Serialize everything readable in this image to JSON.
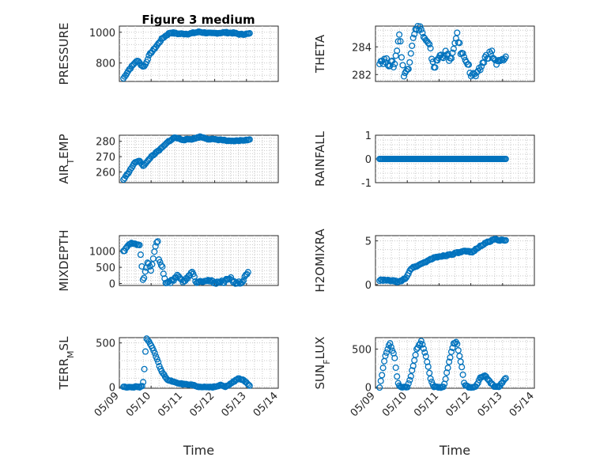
{
  "figure": {
    "title": "Figure 3 medium"
  },
  "chart_data": [
    {
      "id": "pressure",
      "type": "scatter",
      "title": "Figure 3 medium",
      "ylabel": "PRESSURE",
      "xlabel": "",
      "ylim": [
        680,
        1040
      ],
      "yticks": [
        800,
        1000
      ],
      "ytick_labels": [
        "800",
        "1000"
      ],
      "xlim": [
        "05/09",
        "05/14"
      ],
      "xtick_labels": [],
      "anchors": [
        [
          9.13,
          700
        ],
        [
          9.3,
          755
        ],
        [
          9.5,
          805
        ],
        [
          9.6,
          815
        ],
        [
          9.7,
          780
        ],
        [
          9.8,
          780
        ],
        [
          9.95,
          855
        ],
        [
          10.15,
          905
        ],
        [
          10.35,
          960
        ],
        [
          10.6,
          998
        ],
        [
          10.85,
          990
        ],
        [
          11.2,
          990
        ],
        [
          11.5,
          1002
        ],
        [
          11.9,
          992
        ],
        [
          12.3,
          998
        ],
        [
          12.6,
          995
        ],
        [
          12.8,
          986
        ],
        [
          13.1,
          990
        ]
      ],
      "noise": 4,
      "count": 110
    },
    {
      "id": "theta",
      "type": "scatter",
      "title": "",
      "ylabel": "THETA",
      "xlabel": "",
      "ylim": [
        281.5,
        285.5
      ],
      "yticks": [
        282,
        284
      ],
      "ytick_labels": [
        "282",
        "284"
      ],
      "xlim": [
        "05/09",
        "05/14"
      ],
      "xtick_labels": [],
      "anchors": [
        [
          9.13,
          283.0
        ],
        [
          9.3,
          283.0
        ],
        [
          9.45,
          282.8
        ],
        [
          9.6,
          282.7
        ],
        [
          9.75,
          285.0
        ],
        [
          9.9,
          281.8
        ],
        [
          10.05,
          282.7
        ],
        [
          10.2,
          285.0
        ],
        [
          10.4,
          285.5
        ],
        [
          10.55,
          284.5
        ],
        [
          10.7,
          284.0
        ],
        [
          10.85,
          282.5
        ],
        [
          11.0,
          283.3
        ],
        [
          11.2,
          283.5
        ],
        [
          11.4,
          283.0
        ],
        [
          11.55,
          285.0
        ],
        [
          11.7,
          283.5
        ],
        [
          11.85,
          283.2
        ],
        [
          12.0,
          282.0
        ],
        [
          12.2,
          281.9
        ],
        [
          12.45,
          283.2
        ],
        [
          12.65,
          283.6
        ],
        [
          12.8,
          282.8
        ],
        [
          13.1,
          283.1
        ]
      ],
      "noise": 0.25,
      "count": 110
    },
    {
      "id": "air_temp",
      "type": "scatter",
      "title": "",
      "ylabel": "AIR_TEMP",
      "ylabel_main": "AIR",
      "ylabel_sub": "T",
      "ylabel_rest": "EMP",
      "xlabel": "",
      "ylim": [
        253,
        284
      ],
      "yticks": [
        260,
        270,
        280
      ],
      "ytick_labels": [
        "260",
        "270",
        "280"
      ],
      "xlim": [
        "05/09",
        "05/14"
      ],
      "xtick_labels": [],
      "anchors": [
        [
          9.13,
          255
        ],
        [
          9.3,
          260
        ],
        [
          9.5,
          266.5
        ],
        [
          9.65,
          267
        ],
        [
          9.75,
          264
        ],
        [
          9.85,
          266
        ],
        [
          10.0,
          270
        ],
        [
          10.3,
          275
        ],
        [
          10.55,
          280
        ],
        [
          10.75,
          282.5
        ],
        [
          11.0,
          281
        ],
        [
          11.3,
          281.5
        ],
        [
          11.55,
          283
        ],
        [
          11.8,
          281.5
        ],
        [
          12.2,
          281
        ],
        [
          12.5,
          280
        ],
        [
          12.8,
          280.5
        ],
        [
          13.1,
          281
        ]
      ],
      "noise": 0.3,
      "count": 110
    },
    {
      "id": "rainfall",
      "type": "scatter",
      "title": "",
      "ylabel": "RAINFALL",
      "xlabel": "",
      "ylim": [
        -1,
        1
      ],
      "yticks": [
        -1,
        0,
        1
      ],
      "ytick_labels": [
        "-1",
        "0",
        "1"
      ],
      "xlim": [
        "05/09",
        "05/14"
      ],
      "xtick_labels": [],
      "anchors": [
        [
          9.13,
          0
        ],
        [
          13.1,
          0
        ]
      ],
      "noise": 0,
      "count": 110
    },
    {
      "id": "mixdepth",
      "type": "scatter",
      "title": "",
      "ylabel": "MIXDEPTH",
      "xlabel": "",
      "ylim": [
        -60,
        1480
      ],
      "yticks": [
        0,
        500,
        1000
      ],
      "ytick_labels": [
        "0",
        "500",
        "1000"
      ],
      "xlim": [
        "05/09",
        "05/14"
      ],
      "xtick_labels": [],
      "anchors": [
        [
          9.13,
          1000
        ],
        [
          9.25,
          1150
        ],
        [
          9.4,
          1250
        ],
        [
          9.55,
          1200
        ],
        [
          9.65,
          1150
        ],
        [
          9.75,
          0
        ],
        [
          9.8,
          300
        ],
        [
          9.9,
          700
        ],
        [
          10.0,
          400
        ],
        [
          10.1,
          1000
        ],
        [
          10.2,
          1400
        ],
        [
          10.25,
          700
        ],
        [
          10.35,
          500
        ],
        [
          10.45,
          30
        ],
        [
          10.6,
          50
        ],
        [
          10.75,
          150
        ],
        [
          10.85,
          280
        ],
        [
          10.95,
          100
        ],
        [
          11.05,
          50
        ],
        [
          11.15,
          200
        ],
        [
          11.3,
          380
        ],
        [
          11.4,
          50
        ],
        [
          11.55,
          80
        ],
        [
          11.75,
          100
        ],
        [
          12.0,
          30
        ],
        [
          12.3,
          60
        ],
        [
          12.5,
          180
        ],
        [
          12.6,
          40
        ],
        [
          12.85,
          10
        ],
        [
          12.95,
          200
        ],
        [
          13.05,
          320
        ]
      ],
      "noise": 40,
      "count": 110
    },
    {
      "id": "h2omixra",
      "type": "scatter",
      "title": "",
      "ylabel": "H2OMIXRA",
      "xlabel": "",
      "ylim": [
        -0.1,
        5.6
      ],
      "yticks": [
        0,
        5
      ],
      "ytick_labels": [
        "0",
        "5"
      ],
      "xlim": [
        "05/09",
        "05/14"
      ],
      "xtick_labels": [],
      "anchors": [
        [
          9.13,
          0.5
        ],
        [
          9.5,
          0.45
        ],
        [
          9.75,
          0.3
        ],
        [
          9.9,
          0.6
        ],
        [
          10.0,
          1.0
        ],
        [
          10.1,
          1.8
        ],
        [
          10.4,
          2.3
        ],
        [
          10.8,
          3.0
        ],
        [
          11.0,
          3.2
        ],
        [
          11.3,
          3.4
        ],
        [
          11.8,
          3.8
        ],
        [
          12.05,
          3.7
        ],
        [
          12.2,
          4.2
        ],
        [
          12.5,
          4.8
        ],
        [
          12.75,
          5.2
        ],
        [
          13.1,
          5.0
        ]
      ],
      "noise": 0.08,
      "count": 110
    },
    {
      "id": "terr_msl",
      "type": "scatter",
      "title": "",
      "ylabel": "TERR_MSL",
      "ylabel_main": "TERR",
      "ylabel_sub": "M",
      "ylabel_rest": "SL",
      "xlabel": "Time",
      "ylim": [
        -15,
        560
      ],
      "yticks": [
        0,
        500
      ],
      "ytick_labels": [
        "0",
        "500"
      ],
      "xlim": [
        "05/09",
        "05/14"
      ],
      "xtick_labels": [
        "05/09",
        "05/10",
        "05/11",
        "05/12",
        "05/13",
        "05/14"
      ],
      "anchors": [
        [
          9.13,
          0
        ],
        [
          9.7,
          0
        ],
        [
          9.75,
          50
        ],
        [
          9.8,
          270
        ],
        [
          9.85,
          560
        ],
        [
          9.95,
          500
        ],
        [
          10.1,
          400
        ],
        [
          10.3,
          200
        ],
        [
          10.5,
          80
        ],
        [
          10.8,
          50
        ],
        [
          11.0,
          30
        ],
        [
          11.3,
          20
        ],
        [
          11.5,
          0
        ],
        [
          12.0,
          0
        ],
        [
          12.2,
          20
        ],
        [
          12.35,
          0
        ],
        [
          12.6,
          60
        ],
        [
          12.75,
          100
        ],
        [
          12.9,
          80
        ],
        [
          13.05,
          30
        ],
        [
          13.1,
          10
        ]
      ],
      "noise": 6,
      "count": 110
    },
    {
      "id": "sun_flux",
      "type": "scatter",
      "title": "",
      "ylabel": "SUN_FLUX",
      "ylabel_main": "SUN",
      "ylabel_sub": "F",
      "ylabel_rest": "LUX",
      "xlabel": "Time",
      "ylim": [
        -15,
        650
      ],
      "yticks": [
        0,
        500
      ],
      "ytick_labels": [
        "0",
        "500"
      ],
      "xlim": [
        "05/09",
        "05/14"
      ],
      "xtick_labels": [
        "05/09",
        "05/10",
        "05/11",
        "05/12",
        "05/13",
        "05/14"
      ],
      "anchors": [
        [
          9.13,
          0
        ],
        [
          9.2,
          150
        ],
        [
          9.3,
          400
        ],
        [
          9.45,
          580
        ],
        [
          9.6,
          400
        ],
        [
          9.7,
          50
        ],
        [
          9.8,
          0
        ],
        [
          10.0,
          0
        ],
        [
          10.1,
          120
        ],
        [
          10.3,
          500
        ],
        [
          10.45,
          610
        ],
        [
          10.6,
          380
        ],
        [
          10.75,
          80
        ],
        [
          10.85,
          0
        ],
        [
          11.15,
          0
        ],
        [
          11.3,
          300
        ],
        [
          11.45,
          570
        ],
        [
          11.55,
          600
        ],
        [
          11.7,
          300
        ],
        [
          11.8,
          30
        ],
        [
          11.95,
          0
        ],
        [
          12.15,
          0
        ],
        [
          12.3,
          120
        ],
        [
          12.45,
          150
        ],
        [
          12.6,
          70
        ],
        [
          12.75,
          0
        ],
        [
          12.9,
          10
        ],
        [
          13.05,
          100
        ],
        [
          13.1,
          110
        ]
      ],
      "noise": 8,
      "count": 110
    }
  ]
}
